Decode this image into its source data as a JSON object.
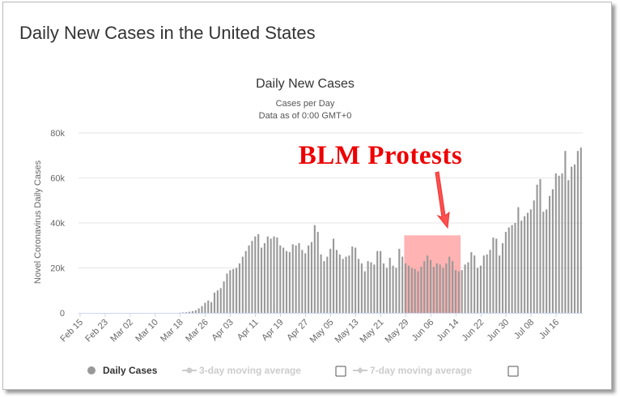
{
  "page": {
    "title": "Daily New Cases in the United States"
  },
  "chart_data": {
    "type": "bar",
    "title": "Daily New Cases",
    "subtitle_lines": [
      "Cases per Day",
      "Data as of 0:00 GMT+0"
    ],
    "xlabel": "",
    "ylabel": "Novel Coronavirus Daily Cases",
    "ylim": [
      0,
      80000
    ],
    "yticks": [
      0,
      20000,
      40000,
      60000,
      80000
    ],
    "ytick_labels": [
      "0",
      "20k",
      "40k",
      "60k",
      "80k"
    ],
    "xtick_labels": [
      "Feb 15",
      "Feb 23",
      "Mar 02",
      "Mar 10",
      "Mar 18",
      "Mar 26",
      "Apr 03",
      "Apr 11",
      "Apr 19",
      "Apr 27",
      "May 05",
      "May 13",
      "May 21",
      "May 29",
      "Jun 06",
      "Jun 14",
      "Jun 22",
      "Jun 30",
      "Jul 08",
      "Jul 16"
    ],
    "grid": true,
    "bar_color": "#999999",
    "series": [
      {
        "name": "Daily Cases",
        "values": [
          0,
          0,
          0,
          0,
          0,
          0,
          0,
          0,
          0,
          0,
          0,
          0,
          0,
          0,
          0,
          0,
          0,
          0,
          0,
          0,
          0,
          0,
          0,
          0,
          0,
          0,
          0,
          0,
          0,
          0,
          0,
          0,
          100,
          200,
          300,
          500,
          800,
          1200,
          2000,
          3000,
          4500,
          5500,
          4800,
          9000,
          10000,
          11000,
          14000,
          17500,
          19000,
          19500,
          20000,
          22000,
          25000,
          27500,
          30000,
          32000,
          34000,
          35000,
          29000,
          31000,
          34000,
          33000,
          34000,
          33500,
          30000,
          29000,
          27500,
          27000,
          30500,
          30000,
          31000,
          28000,
          26500,
          30000,
          31500,
          39000,
          36000,
          26000,
          23000,
          25000,
          28500,
          33000,
          28000,
          26000,
          24000,
          25000,
          25500,
          29500,
          29000,
          24000,
          22000,
          18500,
          23000,
          22500,
          21500,
          27500,
          27500,
          22000,
          20000,
          24500,
          21000,
          20000,
          28500,
          25000,
          22000,
          21000,
          20000,
          19500,
          18500,
          20500,
          23000,
          25500,
          23500,
          20500,
          22000,
          21500,
          20000,
          22000,
          25000,
          23000,
          19000,
          18500,
          19000,
          21500,
          22500,
          27000,
          25500,
          20000,
          21000,
          25500,
          26000,
          28000,
          33500,
          33000,
          25500,
          31000,
          36000,
          38000,
          39000,
          40000,
          47000,
          41000,
          43000,
          44500,
          46000,
          50000,
          57000,
          59500,
          45000,
          46000,
          52000,
          55000,
          62000,
          61000,
          62000,
          72000,
          59000,
          65000,
          66000,
          72000,
          73500
        ]
      }
    ],
    "annotations": [
      {
        "text": "BLM Protests",
        "color": "#ee0000",
        "highlight_x_range": [
          "May 29",
          "Jun 16"
        ]
      }
    ],
    "legend": {
      "placement": "bottom-left",
      "items": [
        {
          "label": "Daily Cases",
          "active": true
        },
        {
          "label": "3-day moving average",
          "active": false
        },
        {
          "label": "7-day moving average",
          "active": false
        }
      ]
    }
  }
}
